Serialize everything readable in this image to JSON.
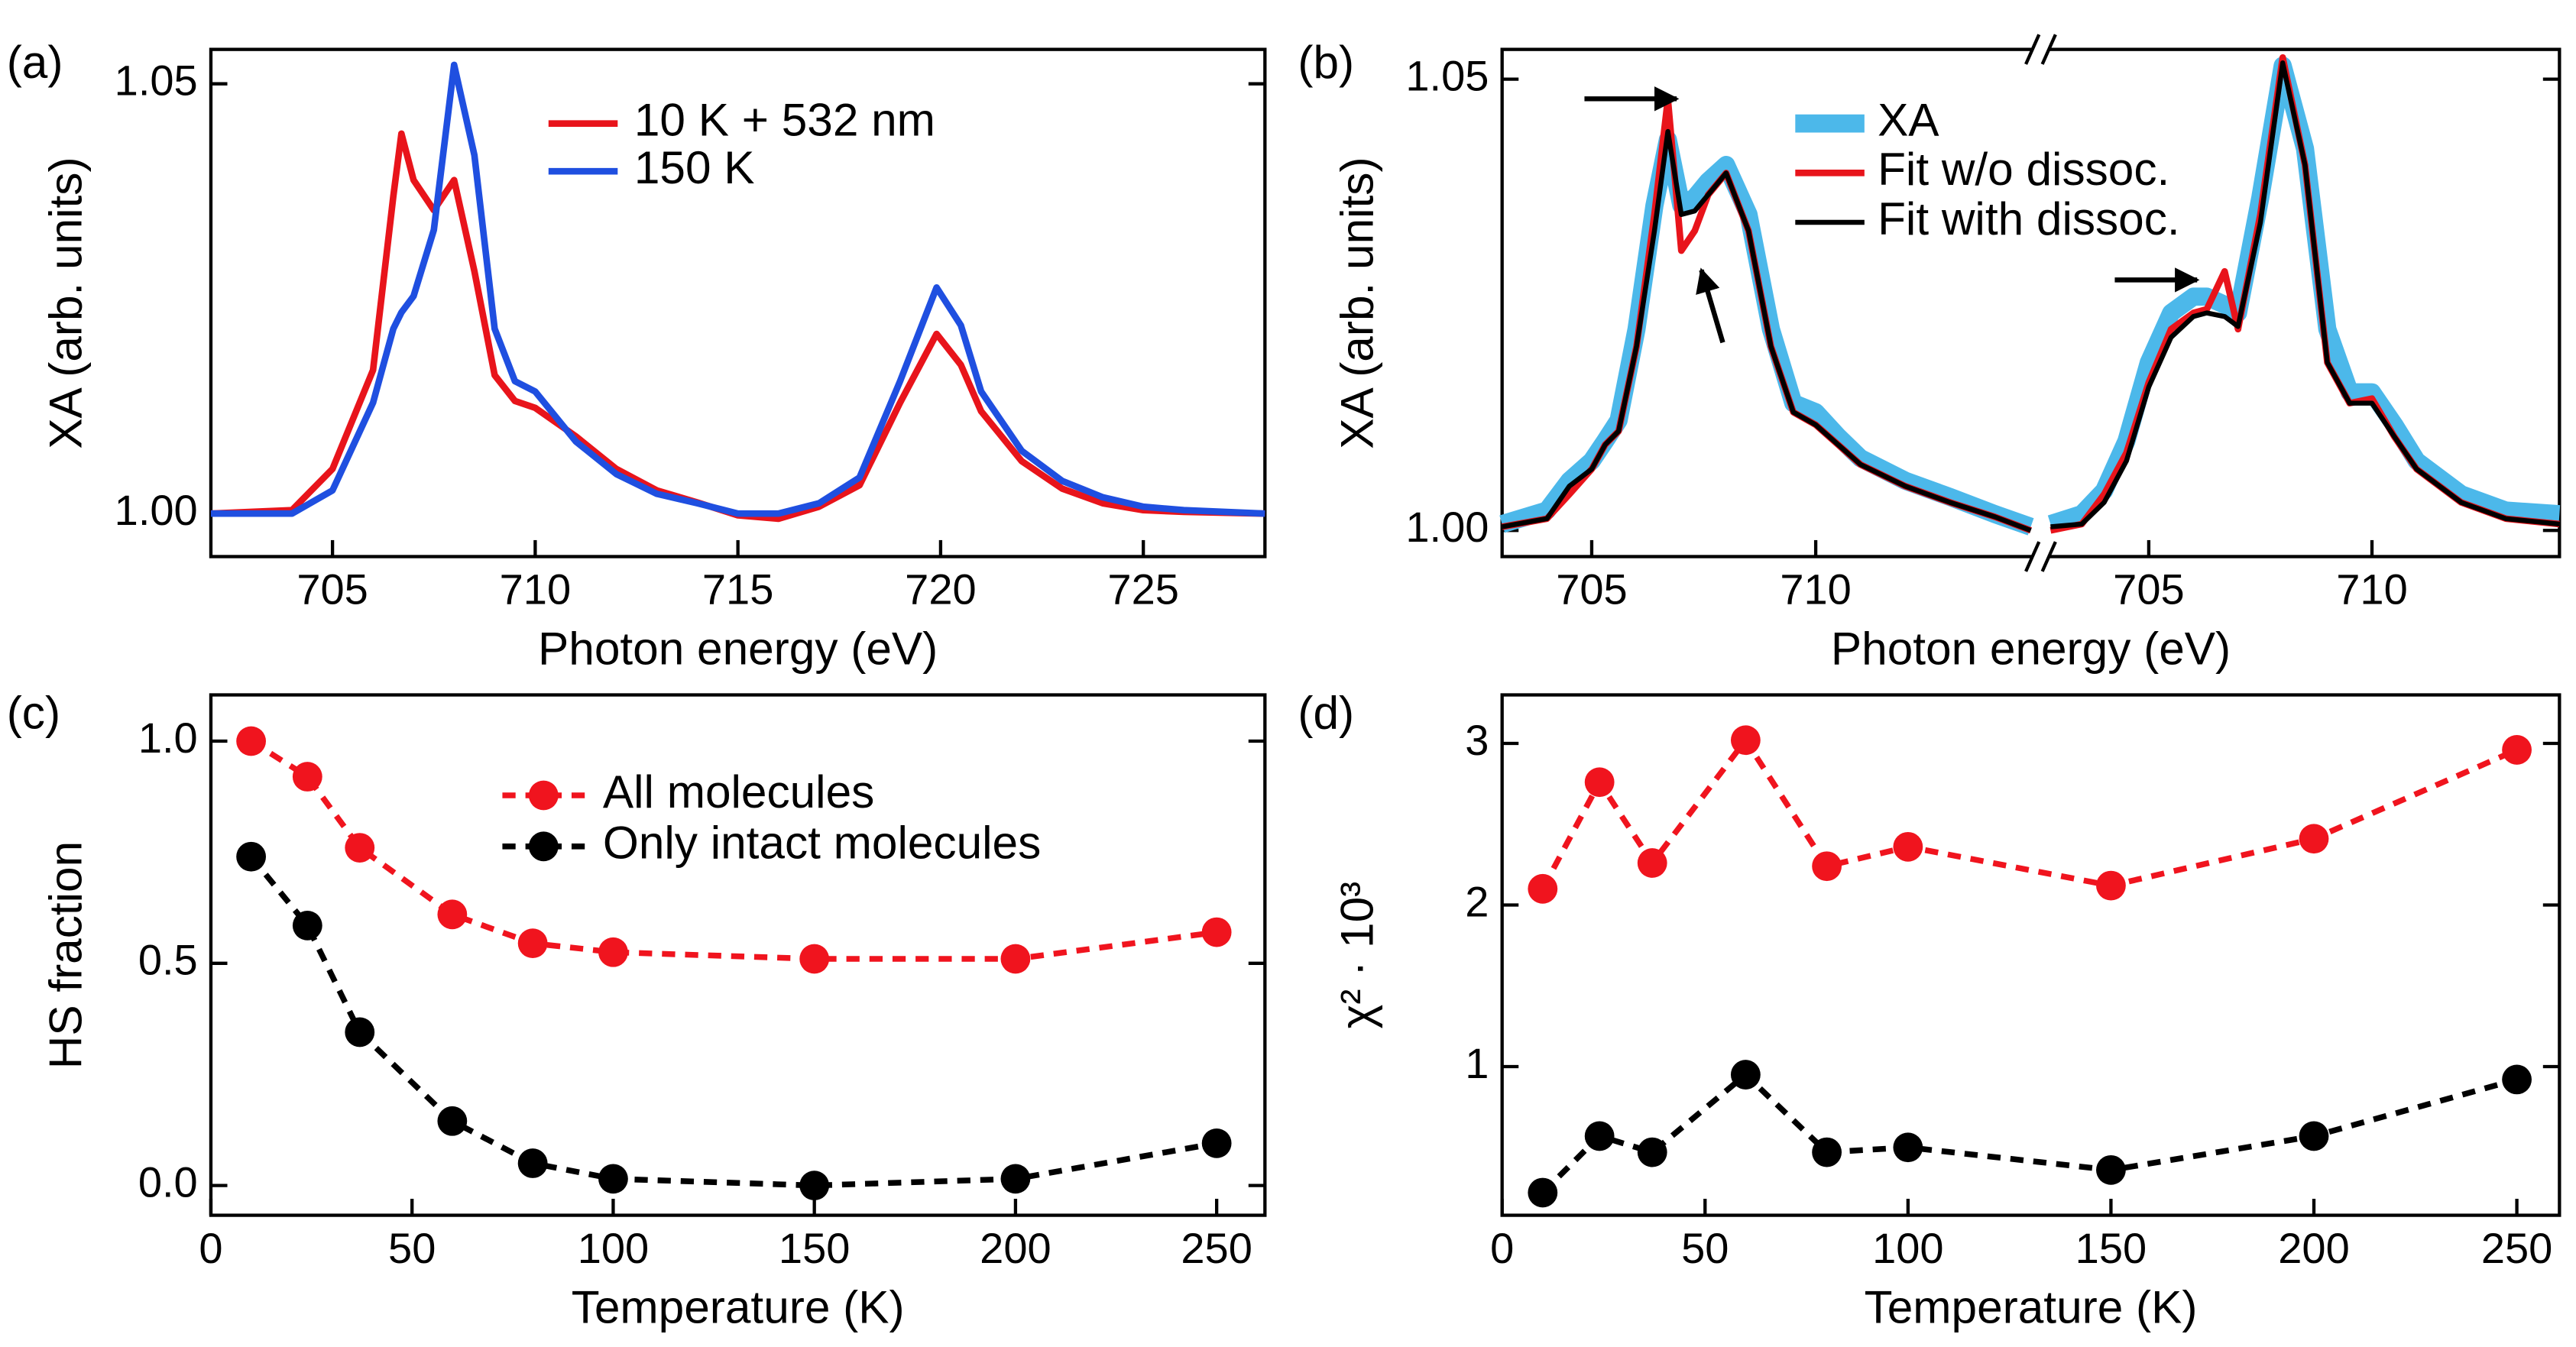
{
  "chart_data": [
    {
      "type": "line",
      "panel_label": "(a)",
      "xlabel": "Photon energy (eV)",
      "ylabel": "XA (arb. units)",
      "xlim": [
        702,
        728
      ],
      "xticks": [
        705,
        710,
        715,
        720,
        725
      ],
      "ylim": [
        0.995,
        1.054
      ],
      "yticks": [
        {
          "value": 1.0,
          "label": "1.00"
        },
        {
          "value": 1.05,
          "label": "1.05"
        }
      ],
      "x": [
        702,
        704,
        705,
        706,
        706.5,
        706.7,
        707,
        707.5,
        708,
        708.5,
        709,
        709.5,
        710,
        711,
        712,
        713,
        714,
        715,
        716,
        717,
        718,
        719,
        719.9,
        720.5,
        721,
        722,
        723,
        724,
        725,
        726,
        728
      ],
      "series": [
        {
          "name": "10 K + 532 nm",
          "color": "#e8141b",
          "linewidth": 4,
          "values": [
            1.0,
            1.0004,
            1.0052,
            1.0167,
            1.0369,
            1.0442,
            1.0388,
            1.0353,
            1.0388,
            1.0282,
            1.0161,
            1.0131,
            1.0123,
            1.009,
            1.0052,
            1.0027,
            1.0013,
            0.9998,
            0.9994,
            1.0008,
            1.0033,
            1.0129,
            1.0209,
            1.0173,
            1.0119,
            1.0061,
            1.0029,
            1.0012,
            1.0004,
            1.0002,
            1.0
          ]
        },
        {
          "name": "150 K",
          "color": "#1f4fe0",
          "linewidth": 4,
          "values": [
            1.0,
            1.0,
            1.0027,
            1.0129,
            1.0215,
            1.0234,
            1.0253,
            1.033,
            1.0522,
            1.0417,
            1.0215,
            1.0154,
            1.0142,
            1.0084,
            1.0046,
            1.0023,
            1.0012,
            1.0,
            1.0,
            1.0012,
            1.0042,
            1.0154,
            1.0263,
            1.0219,
            1.0142,
            1.0073,
            1.0038,
            1.0019,
            1.0008,
            1.0004,
            1.0
          ]
        }
      ]
    },
    {
      "type": "line",
      "panel_label": "(b)",
      "xlabel": "Photon energy (eV)",
      "ylabel": "XA (arb. units)",
      "ylim": [
        0.9971,
        1.0533
      ],
      "yticks": [
        {
          "value": 1.0,
          "label": "1.00"
        },
        {
          "value": 1.05,
          "label": "1.05"
        }
      ],
      "segments": [
        {
          "xlim": [
            703,
            714.8
          ],
          "xticks": [
            705,
            710
          ],
          "x": [
            703,
            704,
            704.5,
            705,
            705.3,
            705.6,
            706,
            706.4,
            706.7,
            707,
            707.3,
            707.6,
            708,
            708.5,
            709,
            709.5,
            710,
            710.5,
            711,
            712,
            713,
            714,
            714.8
          ]
        },
        {
          "xlim": [
            702.8,
            714.2
          ],
          "xticks": [
            705,
            710
          ],
          "x": [
            702.8,
            703.5,
            704,
            704.5,
            705,
            705.5,
            706,
            706.3,
            706.7,
            707,
            707.5,
            708,
            708.5,
            709,
            709.5,
            710,
            710.5,
            711,
            712,
            713,
            714.2
          ]
        }
      ],
      "series": [
        {
          "name": "XA",
          "color": "#4cb8ea",
          "linewidth": 11,
          "values": [
            [
              1.0007,
              1.0022,
              1.0055,
              1.0077,
              1.0099,
              1.0122,
              1.0223,
              1.036,
              1.0433,
              1.036,
              1.0369,
              1.0387,
              1.0405,
              1.035,
              1.0223,
              1.0141,
              1.0131,
              1.0104,
              1.008,
              1.0055,
              1.0037,
              1.0018,
              1.0004
            ],
            [
              1.0007,
              1.0018,
              1.0044,
              1.0099,
              1.0186,
              1.0241,
              1.0259,
              1.0259,
              1.025,
              1.0241,
              1.0369,
              1.0515,
              1.0423,
              1.0223,
              1.0153,
              1.0153,
              1.0117,
              1.0077,
              1.004,
              1.0022,
              1.0018
            ]
          ]
        },
        {
          "name": "Fit w/o dissoc.",
          "color": "#e8141b",
          "linewidth": 4,
          "values": [
            [
              1.0004,
              1.0013,
              1.004,
              1.0068,
              1.0095,
              1.011,
              1.0204,
              1.035,
              1.0478,
              1.031,
              1.0332,
              1.0372,
              1.0396,
              1.0332,
              1.0204,
              1.0131,
              1.0117,
              1.0095,
              1.0073,
              1.0049,
              1.0031,
              1.0015,
              1.0
            ],
            [
              1.0,
              1.0007,
              1.004,
              1.0086,
              1.0164,
              1.0223,
              1.0241,
              1.0245,
              1.0287,
              1.0223,
              1.035,
              1.0524,
              1.0405,
              1.0186,
              1.0141,
              1.0146,
              1.0104,
              1.0068,
              1.0031,
              1.0013,
              1.0007
            ]
          ]
        },
        {
          "name": "Fit with dissoc.",
          "color": "#000000",
          "linewidth": 3,
          "values": [
            [
              1.0004,
              1.0013,
              1.0049,
              1.0068,
              1.0095,
              1.011,
              1.0204,
              1.0332,
              1.0442,
              1.035,
              1.0354,
              1.0372,
              1.0396,
              1.0332,
              1.0204,
              1.0131,
              1.0117,
              1.0095,
              1.0073,
              1.0049,
              1.0031,
              1.0015,
              1.0
            ],
            [
              1.0004,
              1.0007,
              1.0031,
              1.0077,
              1.0159,
              1.0214,
              1.0237,
              1.0241,
              1.0237,
              1.0226,
              1.0341,
              1.0518,
              1.0405,
              1.0186,
              1.0141,
              1.0141,
              1.0104,
              1.0068,
              1.0031,
              1.0013,
              1.0007
            ]
          ]
        }
      ]
    },
    {
      "type": "line",
      "panel_label": "(c)",
      "xlabel": "Temperature (K)",
      "ylabel": "HS fraction",
      "marker": "circle",
      "linestyle": "dashed",
      "xlim": [
        0,
        262
      ],
      "xticks": [
        0,
        50,
        100,
        150,
        200,
        250
      ],
      "ylim": [
        -0.067,
        1.104
      ],
      "yticks": [
        {
          "value": 0.0,
          "label": "0.0"
        },
        {
          "value": 0.5,
          "label": "0.5"
        },
        {
          "value": 1.0,
          "label": "1.0"
        }
      ],
      "x": [
        10,
        24,
        37,
        60,
        80,
        100,
        150,
        200,
        250
      ],
      "series": [
        {
          "name": "All molecules",
          "color": "#f0141e",
          "linewidth": 3.5,
          "values": [
            1.0,
            0.92,
            0.76,
            0.61,
            0.545,
            0.525,
            0.51,
            0.51,
            0.57
          ]
        },
        {
          "name": "Only intact molecules",
          "color": "#000000",
          "linewidth": 3.5,
          "values": [
            0.74,
            0.585,
            0.345,
            0.145,
            0.05,
            0.015,
            0.0,
            0.015,
            0.095
          ]
        }
      ]
    },
    {
      "type": "line",
      "panel_label": "(d)",
      "xlabel": "Temperature (K)",
      "ylabel": "χ² · 10³",
      "marker": "circle",
      "linestyle": "dashed",
      "xlim": [
        0,
        260.5
      ],
      "xticks": [
        0,
        50,
        100,
        150,
        200,
        250
      ],
      "ylim": [
        0.08,
        3.3
      ],
      "yticks": [
        1,
        2,
        3
      ],
      "x": [
        10,
        24,
        37,
        60,
        80,
        100,
        150,
        200,
        250
      ],
      "series": [
        {
          "color": "#f0141e",
          "linewidth": 3.5,
          "values": [
            2.1,
            2.76,
            2.26,
            3.02,
            2.24,
            2.36,
            2.12,
            2.41,
            2.96
          ]
        },
        {
          "color": "#000000",
          "linewidth": 3.5,
          "values": [
            0.22,
            0.57,
            0.47,
            0.95,
            0.47,
            0.5,
            0.36,
            0.57,
            0.92
          ]
        }
      ]
    }
  ]
}
